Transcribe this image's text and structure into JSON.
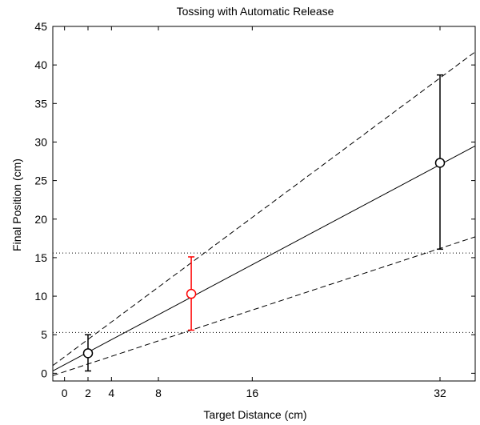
{
  "chart_data": {
    "type": "line",
    "title": "Tossing with Automatic Release",
    "xlabel": "Target Distance (cm)",
    "ylabel": "Final Position (cm)",
    "xlim": [
      -1,
      35
    ],
    "ylim": [
      -1,
      45
    ],
    "x_ticks": [
      0,
      2,
      4,
      8,
      16,
      32
    ],
    "x_tick_labels": [
      "0",
      "2",
      "4",
      "8",
      "16",
      "32"
    ],
    "y_ticks": [
      0,
      5,
      10,
      15,
      20,
      25,
      30,
      35,
      40,
      45
    ],
    "y_tick_labels": [
      "0",
      "5",
      "10",
      "15",
      "20",
      "25",
      "30",
      "35",
      "40",
      "45"
    ],
    "grid": false,
    "colors": {
      "default": "#000000",
      "highlight": "#ff0000"
    },
    "lines": [
      {
        "style": "solid",
        "x": [
          -1,
          35
        ],
        "y": [
          0.3,
          29.5
        ]
      },
      {
        "style": "dashed",
        "x": [
          -1,
          35
        ],
        "y": [
          1.0,
          41.7
        ]
      },
      {
        "style": "dashed",
        "x": [
          -1,
          35
        ],
        "y": [
          -0.3,
          17.7
        ]
      }
    ],
    "hlines": [
      {
        "style": "dotted",
        "y": 15.6,
        "x": [
          -1,
          35
        ]
      },
      {
        "style": "dotted",
        "y": 5.3,
        "x": [
          -1,
          35
        ]
      }
    ],
    "points": [
      {
        "x": 2,
        "y": 2.6,
        "y_low": 0.3,
        "y_high": 5.0,
        "color": "#000000"
      },
      {
        "x": 10.8,
        "y": 10.3,
        "y_low": 5.6,
        "y_high": 15.1,
        "color": "#ff0000"
      },
      {
        "x": 32,
        "y": 27.3,
        "y_low": 16.1,
        "y_high": 38.7,
        "color": "#000000"
      }
    ]
  }
}
